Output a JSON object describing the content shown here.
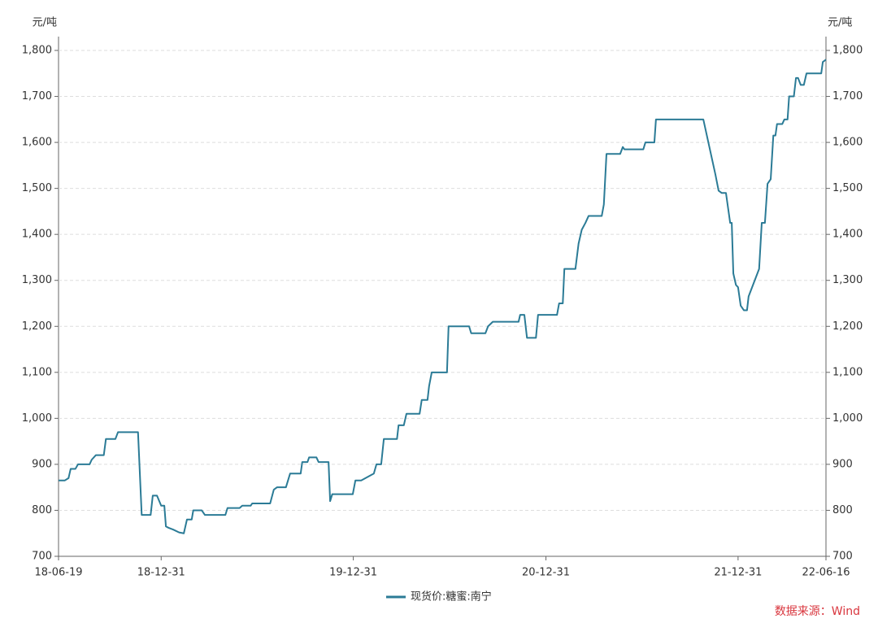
{
  "chart_data": {
    "type": "line",
    "y_label": "元/吨",
    "y2_label": "元/吨",
    "x": [
      "18-06-19",
      "18-07-01",
      "18-07-08",
      "18-07-12",
      "18-07-21",
      "18-07-26",
      "18-08-17",
      "18-08-21",
      "18-08-29",
      "18-09-13",
      "18-09-17",
      "18-10-05",
      "18-10-10",
      "18-11-17",
      "18-11-24",
      "18-12-11",
      "18-12-15",
      "18-12-23",
      "18-12-31",
      "19-01-06",
      "19-01-09",
      "19-01-14",
      "19-01-23",
      "19-02-03",
      "19-02-12",
      "19-02-18",
      "19-02-27",
      "19-03-02",
      "19-03-18",
      "19-03-24",
      "19-05-02",
      "19-05-06",
      "19-05-29",
      "19-06-03",
      "19-06-19",
      "19-06-22",
      "19-07-26",
      "19-08-02",
      "19-08-08",
      "19-08-25",
      "19-09-02",
      "19-09-22",
      "19-09-25",
      "19-10-05",
      "19-10-08",
      "19-10-22",
      "19-10-26",
      "19-11-14",
      "19-11-17",
      "19-11-21",
      "19-12-30",
      "20-01-04",
      "20-01-15",
      "20-02-08",
      "20-02-13",
      "20-02-22",
      "20-02-27",
      "20-03-23",
      "20-03-26",
      "20-04-05",
      "20-04-10",
      "20-05-05",
      "20-05-09",
      "20-05-20",
      "20-05-23",
      "20-05-28",
      "20-06-26",
      "20-06-29",
      "20-08-07",
      "20-08-11",
      "20-09-07",
      "20-09-12",
      "20-09-21",
      "20-11-09",
      "20-11-12",
      "20-11-20",
      "20-11-25",
      "20-12-12",
      "20-12-16",
      "21-01-21",
      "21-01-25",
      "21-02-01",
      "21-02-04",
      "21-02-25",
      "21-03-03",
      "21-03-09",
      "21-03-16",
      "21-03-22",
      "21-04-16",
      "21-04-20",
      "21-04-25",
      "21-05-21",
      "21-05-26",
      "21-05-29",
      "21-07-04",
      "21-07-08",
      "21-07-25",
      "21-07-28",
      "21-10-26",
      "21-11-18",
      "21-11-24",
      "21-11-30",
      "21-12-08",
      "21-12-16",
      "21-12-19",
      "21-12-22",
      "21-12-27",
      "21-12-31",
      "22-01-05",
      "22-01-11",
      "22-01-17",
      "22-01-20",
      "22-02-09",
      "22-02-14",
      "22-02-20",
      "22-02-25",
      "22-03-03",
      "22-03-08",
      "22-03-12",
      "22-03-15",
      "22-03-25",
      "22-03-29",
      "22-04-04",
      "22-04-07",
      "22-04-16",
      "22-04-20",
      "22-04-24",
      "22-04-29",
      "22-05-05",
      "22-05-10",
      "22-06-07",
      "22-06-10",
      "22-06-16"
    ],
    "series": [
      {
        "name": "现货价:糖蜜:南宁",
        "color": "#2b7b96",
        "values": [
          865,
          865,
          870,
          890,
          890,
          900,
          900,
          910,
          920,
          920,
          955,
          955,
          970,
          970,
          790,
          790,
          832,
          832,
          810,
          810,
          765,
          762,
          758,
          752,
          750,
          780,
          780,
          800,
          800,
          790,
          790,
          805,
          805,
          810,
          810,
          815,
          815,
          845,
          850,
          850,
          880,
          880,
          905,
          905,
          915,
          915,
          905,
          905,
          820,
          835,
          835,
          865,
          865,
          880,
          900,
          900,
          955,
          955,
          985,
          985,
          1010,
          1010,
          1040,
          1040,
          1070,
          1100,
          1100,
          1200,
          1200,
          1185,
          1185,
          1200,
          1210,
          1210,
          1225,
          1225,
          1175,
          1175,
          1225,
          1225,
          1250,
          1250,
          1325,
          1325,
          1380,
          1410,
          1425,
          1440,
          1440,
          1465,
          1575,
          1575,
          1590,
          1585,
          1585,
          1600,
          1600,
          1650,
          1650,
          1530,
          1495,
          1490,
          1490,
          1425,
          1425,
          1315,
          1290,
          1285,
          1245,
          1235,
          1235,
          1265,
          1325,
          1425,
          1425,
          1510,
          1520,
          1615,
          1615,
          1640,
          1640,
          1650,
          1650,
          1700,
          1700,
          1740,
          1740,
          1725,
          1725,
          1750,
          1750,
          1775,
          1780
        ]
      }
    ],
    "xticks": [
      "18-06-19",
      "18-12-31",
      "19-12-31",
      "20-12-31",
      "21-12-31",
      "22-06-16"
    ],
    "ylim": [
      700,
      1800
    ],
    "yticks": [
      700,
      800,
      900,
      {
        "value": 1000,
        "label": "1,000"
      },
      {
        "value": 1100,
        "label": "1,100"
      },
      {
        "value": 1200,
        "label": "1,200"
      },
      {
        "value": 1300,
        "label": "1,300"
      },
      {
        "value": 1400,
        "label": "1,400"
      },
      {
        "value": 1500,
        "label": "1,500"
      },
      {
        "value": 1600,
        "label": "1,600"
      },
      {
        "value": 1700,
        "label": "1,700"
      },
      {
        "value": 1800,
        "label": "1,800"
      }
    ],
    "y2lim": [
      700,
      1800
    ],
    "y2ticks": [
      700,
      800,
      900,
      {
        "value": 1000,
        "label": "1,000"
      },
      {
        "value": 1100,
        "label": "1,100"
      },
      {
        "value": 1200,
        "label": "1,200"
      },
      {
        "value": 1300,
        "label": "1,300"
      },
      {
        "value": 1400,
        "label": "1,400"
      },
      {
        "value": 1500,
        "label": "1,500"
      },
      {
        "value": 1600,
        "label": "1,600"
      },
      {
        "value": 1700,
        "label": "1,700"
      },
      {
        "value": 1800,
        "label": "1,800"
      }
    ],
    "grid": true,
    "legend_position": "bottom",
    "source": "数据来源：Wind",
    "source_color": "#d9363e"
  }
}
